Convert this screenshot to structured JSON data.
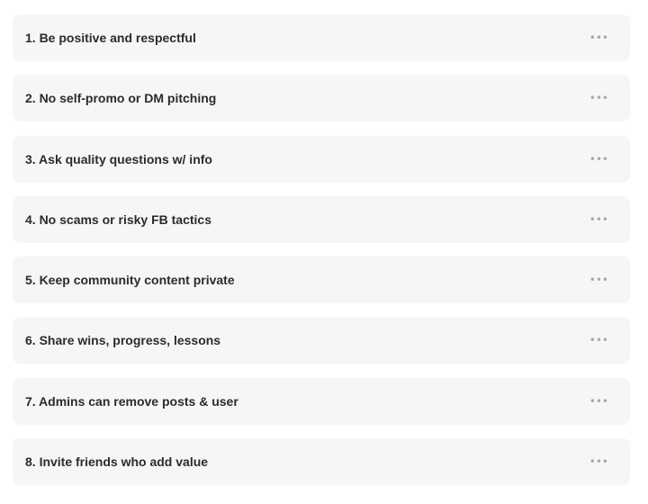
{
  "rules": [
    {
      "label": "1. Be positive and respectful"
    },
    {
      "label": "2. No self-promo or DM pitching"
    },
    {
      "label": "3. Ask quality questions w/ info"
    },
    {
      "label": "4. No scams or risky FB tactics"
    },
    {
      "label": "5. Keep community content private"
    },
    {
      "label": "6. Share wins, progress, lessons"
    },
    {
      "label": "7. Admins can remove posts & user"
    },
    {
      "label": "8. Invite friends who add value"
    }
  ],
  "more_icon": "more-horizontal-icon",
  "more_glyph": "•••"
}
